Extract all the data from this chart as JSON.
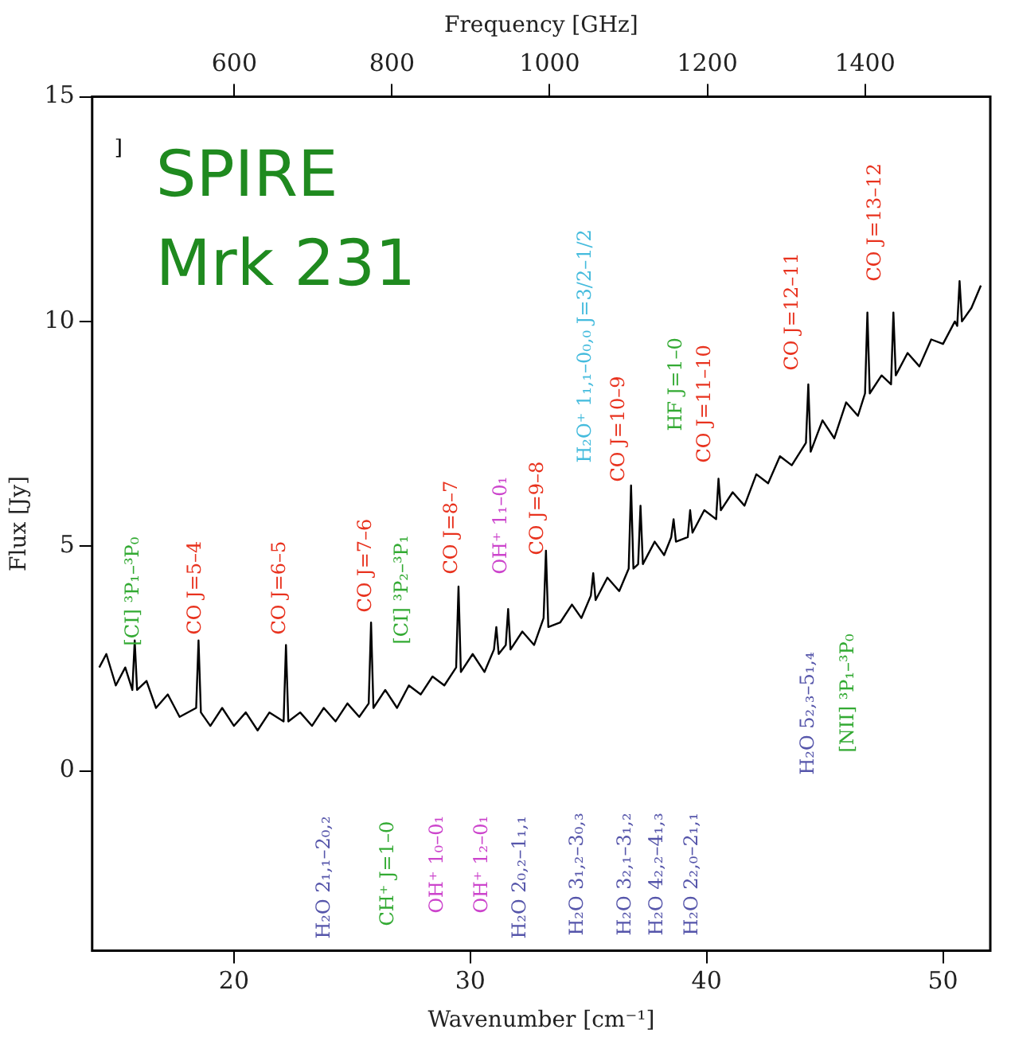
{
  "chart_data": {
    "type": "line",
    "title": "SPIRE",
    "subtitle": "Mrk 231",
    "xlabel": "Wavenumber [cm⁻¹]",
    "ylabel": "Flux [Jy]",
    "x2label": "Frequency [GHz]",
    "x": [
      14.3,
      14.6,
      15.0,
      15.4,
      15.7,
      15.8,
      15.9,
      16.3,
      16.7,
      17.2,
      17.7,
      18.4,
      18.5,
      18.6,
      19.0,
      19.5,
      20.0,
      20.5,
      21.0,
      21.5,
      22.1,
      22.2,
      22.3,
      22.8,
      23.3,
      23.8,
      24.3,
      24.8,
      25.3,
      25.7,
      25.8,
      25.9,
      26.4,
      26.9,
      27.4,
      27.9,
      28.4,
      28.9,
      29.4,
      29.5,
      29.6,
      30.1,
      30.6,
      31.0,
      31.1,
      31.2,
      31.5,
      31.6,
      31.7,
      32.2,
      32.7,
      33.1,
      33.2,
      33.3,
      33.8,
      34.3,
      34.7,
      35.1,
      35.2,
      35.3,
      35.8,
      36.3,
      36.7,
      36.8,
      36.9,
      37.1,
      37.2,
      37.3,
      37.8,
      38.2,
      38.5,
      38.6,
      38.7,
      39.2,
      39.3,
      39.4,
      39.9,
      40.4,
      40.5,
      40.6,
      41.1,
      41.6,
      42.1,
      42.6,
      43.1,
      43.6,
      44.2,
      44.3,
      44.4,
      44.9,
      45.4,
      45.9,
      46.4,
      46.7,
      46.8,
      46.9,
      47.4,
      47.8,
      47.9,
      48.0,
      48.5,
      49.0,
      49.5,
      50.0,
      50.5,
      50.6,
      50.7,
      50.8,
      51.2,
      51.6
    ],
    "series": [
      {
        "color": "#000000",
        "values": [
          2.3,
          2.6,
          1.9,
          2.3,
          1.8,
          2.9,
          1.8,
          2.0,
          1.4,
          1.7,
          1.2,
          1.4,
          2.9,
          1.3,
          1.0,
          1.4,
          1.0,
          1.3,
          0.9,
          1.3,
          1.1,
          2.8,
          1.1,
          1.3,
          1.0,
          1.4,
          1.1,
          1.5,
          1.2,
          1.5,
          3.3,
          1.4,
          1.8,
          1.4,
          1.9,
          1.7,
          2.1,
          1.9,
          2.3,
          4.1,
          2.2,
          2.6,
          2.2,
          2.7,
          3.2,
          2.6,
          2.8,
          3.6,
          2.7,
          3.1,
          2.8,
          3.4,
          4.9,
          3.2,
          3.3,
          3.7,
          3.4,
          3.9,
          4.4,
          3.8,
          4.3,
          4.0,
          4.5,
          6.35,
          4.5,
          4.6,
          5.9,
          4.6,
          5.1,
          4.8,
          5.2,
          5.6,
          5.1,
          5.2,
          5.8,
          5.3,
          5.8,
          5.6,
          6.5,
          5.8,
          6.2,
          5.9,
          6.6,
          6.4,
          7.0,
          6.8,
          7.3,
          8.6,
          7.1,
          7.8,
          7.4,
          8.2,
          7.9,
          8.4,
          10.2,
          8.4,
          8.8,
          8.6,
          10.2,
          8.8,
          9.3,
          9.0,
          9.6,
          9.5,
          10.0,
          9.9,
          10.9,
          10.0,
          10.3,
          10.8
        ]
      }
    ],
    "xlim": [
      14,
      52
    ],
    "xticks": [
      20,
      30,
      40,
      50
    ],
    "ylim": [
      -4,
      15
    ],
    "yticks": [
      0,
      5,
      10,
      15
    ],
    "x2lim": [
      419.7,
      1558.9
    ],
    "x2ticks": [
      600,
      800,
      1000,
      1200,
      1400
    ],
    "marker": "none",
    "line_style": "solid",
    "legend": false,
    "annotations": [
      "]",
      "[CI] ³P₁–³P₀",
      "CO J=5–4",
      "CO J=6–5",
      "CO J=7–6",
      "[CI] ³P₂–³P₁",
      "CO J=8–7",
      "OH⁺ 1₁–0₁",
      "CO J=9–8",
      "H₂O⁺ 1₁,₁–0₀,₀ J=3/2–1/2",
      "CO J=10–9",
      "HF J=1–0",
      "CO J=11–10",
      "CO J=12–11",
      "CO J=13–12",
      "H₂O 5₂,₃–5₁,₄",
      "[NII] ³P₁–³P₀",
      "H₂O 2₁,₁–2₀,₂",
      "CH⁺ J=1–0",
      "OH⁺ 1₀–0₁",
      "OH⁺ 1₂–0₁",
      "H₂O 2₀,₂–1₁,₁",
      "H₂O 3₁,₂–3₀,₃",
      "H₂O 3₂,₁–3₁,₂",
      "H₂O 4₂,₂–4₁,₃",
      "H₂O 2₂,₀–2₁,₁"
    ]
  }
}
